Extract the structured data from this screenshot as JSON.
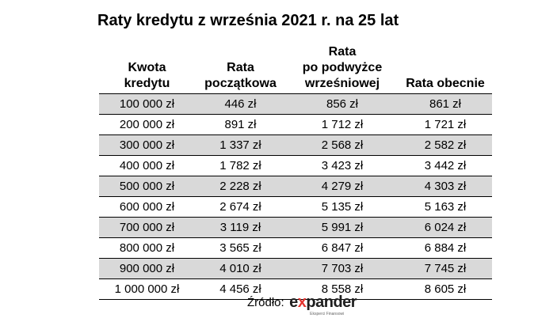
{
  "title": "Raty kredytu z września 2021 r. na 25 lat",
  "table": {
    "headers": [
      [
        "Kwota",
        "kredytu"
      ],
      [
        "Rata",
        "początkowa"
      ],
      [
        "Rata",
        "po podwyżce",
        "wrześniowej"
      ],
      [
        "Rata obecnie"
      ]
    ],
    "rows": [
      [
        "100 000 zł",
        "446 zł",
        "856 zł",
        "861 zł"
      ],
      [
        "200 000 zł",
        "891 zł",
        "1 712 zł",
        "1 721 zł"
      ],
      [
        "300 000 zł",
        "1 337 zł",
        "2 568 zł",
        "2 582 zł"
      ],
      [
        "400 000 zł",
        "1 782 zł",
        "3 423 zł",
        "3 442 zł"
      ],
      [
        "500 000 zł",
        "2 228 zł",
        "4 279 zł",
        "4 303 zł"
      ],
      [
        "600 000 zł",
        "2 674 zł",
        "5 135 zł",
        "5 163 zł"
      ],
      [
        "700 000 zł",
        "3 119 zł",
        "5 991 zł",
        "6 024 zł"
      ],
      [
        "800 000 zł",
        "3 565 zł",
        "6 847 zł",
        "6 884 zł"
      ],
      [
        "900 000 zł",
        "4 010 zł",
        "7 703 zł",
        "7 745 zł"
      ],
      [
        "1 000 000 zł",
        "4 456 zł",
        "8 558 zł",
        "8 605 zł"
      ]
    ],
    "shaded_row_color": "#d9d9d9"
  },
  "source": {
    "label": "Źródło:",
    "logo": {
      "prefix": "e",
      "x": "x",
      "rest": "pander",
      "tagline": "Eksperci Finansowi",
      "accent_color": "#e3342f"
    }
  }
}
